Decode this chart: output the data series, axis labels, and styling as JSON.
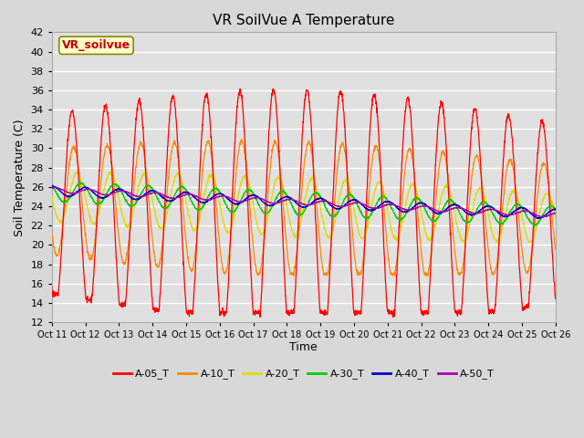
{
  "title": "VR SoilVue A Temperature",
  "ylabel": "Soil Temperature (C)",
  "xlabel": "Time",
  "watermark": "VR_soilvue",
  "ylim": [
    12,
    42
  ],
  "yticks": [
    12,
    14,
    16,
    18,
    20,
    22,
    24,
    26,
    28,
    30,
    32,
    34,
    36,
    38,
    40,
    42
  ],
  "xtick_labels": [
    "Oct 11",
    "Oct 12",
    "Oct 13",
    "Oct 14",
    "Oct 15",
    "Oct 16",
    "Oct 17",
    "Oct 18",
    "Oct 19",
    "Oct 20",
    "Oct 21",
    "Oct 22",
    "Oct 23",
    "Oct 24",
    "Oct 25",
    "Oct 26"
  ],
  "n_days": 15,
  "fig_bg_color": "#d8d8d8",
  "plot_bg_color": "#e0e0e0",
  "series_colors": {
    "A-05_T": "#ff0000",
    "A-10_T": "#ff8800",
    "A-20_T": "#dddd00",
    "A-30_T": "#00cc00",
    "A-40_T": "#0000cc",
    "A-50_T": "#aa00aa"
  },
  "legend_order": [
    "A-05_T",
    "A-10_T",
    "A-20_T",
    "A-30_T",
    "A-40_T",
    "A-50_T"
  ]
}
